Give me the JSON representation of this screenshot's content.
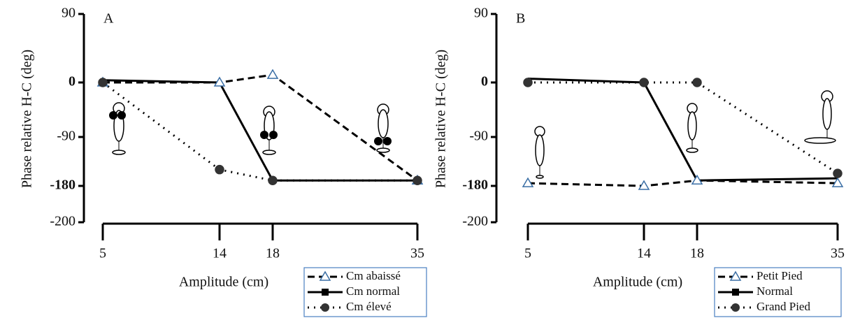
{
  "chart_data": [
    {
      "type": "line",
      "title": "A",
      "x_label": "Amplitude (cm)",
      "y_label": "Phase relative H-C (deg)",
      "x": [
        5,
        14,
        18,
        35
      ],
      "xlim": [
        5,
        35
      ],
      "xticks": [
        5,
        14,
        18,
        35
      ],
      "ylim": [
        -200,
        90
      ],
      "yticks": [
        90,
        0,
        -90,
        -180,
        -200
      ],
      "series": [
        {
          "name": "Cm abaissé",
          "color": "#000000",
          "marker": "triangle",
          "marker_color": "#3a6ea5",
          "dash": "dashed",
          "values": [
            0,
            0,
            10,
            -170
          ]
        },
        {
          "name": "Cm normal",
          "color": "#000000",
          "marker": "square",
          "marker_color": "#000000",
          "dash": "solid",
          "values": [
            3,
            0,
            -170,
            -170
          ]
        },
        {
          "name": "Cm élevé",
          "color": "#000000",
          "marker": "circle",
          "marker_color": "#333333",
          "dash": "dotted",
          "values": [
            0,
            -150,
            -170,
            -170
          ]
        }
      ]
    },
    {
      "type": "line",
      "title": "B",
      "x_label": "Amplitude (cm)",
      "y_label": "Phase relative H-C (deg)",
      "x": [
        5,
        14,
        18,
        35
      ],
      "xlim": [
        5,
        35
      ],
      "xticks": [
        5,
        14,
        18,
        35
      ],
      "ylim": [
        -200,
        90
      ],
      "yticks": [
        90,
        0,
        -90,
        -180,
        -200
      ],
      "series": [
        {
          "name": "Petit Pied",
          "color": "#000000",
          "marker": "triangle",
          "marker_color": "#3a6ea5",
          "dash": "dashed",
          "values": [
            -175,
            -180,
            -170,
            -175
          ]
        },
        {
          "name": "Normal",
          "color": "#000000",
          "marker": "square",
          "marker_color": "#000000",
          "dash": "solid",
          "values": [
            5,
            0,
            -170,
            -166
          ]
        },
        {
          "name": "Grand Pied",
          "color": "#000000",
          "marker": "circle",
          "marker_color": "#333333",
          "dash": "dotted",
          "values": [
            0,
            0,
            0,
            -157
          ]
        }
      ]
    }
  ]
}
